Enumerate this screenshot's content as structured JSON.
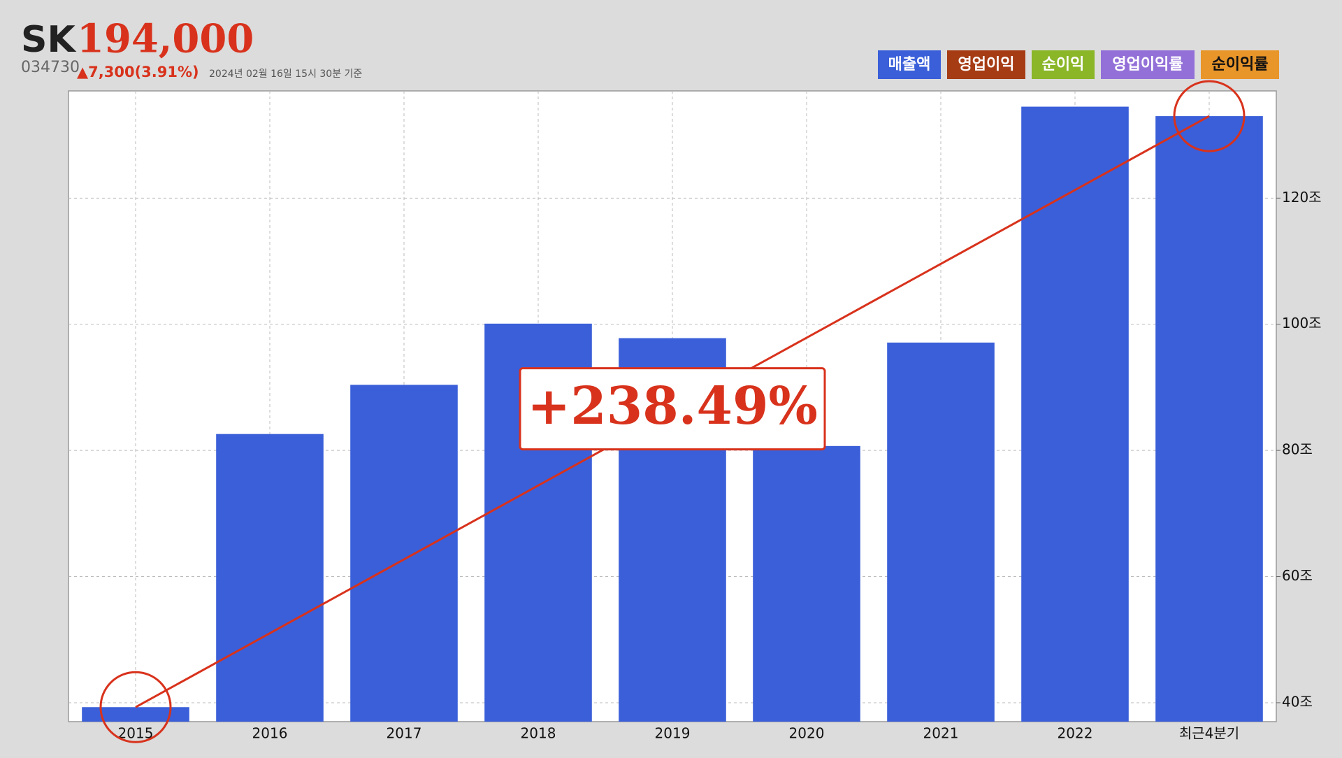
{
  "header": {
    "name": "SK",
    "price": "194,000",
    "code": "034730",
    "change": "▲7,300(3.91%)",
    "timestamp": "2024년 02월 16일 15시 30분 기준"
  },
  "chart_data": {
    "type": "bar",
    "legend": [
      {
        "name": "매출액",
        "color": "#3a5fd9"
      },
      {
        "name": "영업이익",
        "color": "#a63c14"
      },
      {
        "name": "순이익",
        "color": "#8ab627"
      },
      {
        "name": "영업이익률",
        "color": "#9370d8"
      },
      {
        "name": "순이익률",
        "color": "#e8952a"
      }
    ],
    "categories": [
      "2015",
      "2016",
      "2017",
      "2018",
      "2019",
      "2020",
      "2021",
      "2022",
      "최근4분기"
    ],
    "series": [
      {
        "name": "매출액",
        "color": "#3a5fd9",
        "values": [
          39.3,
          82.6,
          90.4,
          100.1,
          97.8,
          80.7,
          97.1,
          134.5,
          133.0
        ]
      }
    ],
    "ylim": [
      37,
      137
    ],
    "yticks": [
      {
        "value": 40,
        "label": "40조"
      },
      {
        "value": 60,
        "label": "60조"
      },
      {
        "value": 80,
        "label": "80조"
      },
      {
        "value": 100,
        "label": "100조"
      },
      {
        "value": 120,
        "label": "120조"
      }
    ],
    "grid": true,
    "annotation": "+238.49%"
  }
}
